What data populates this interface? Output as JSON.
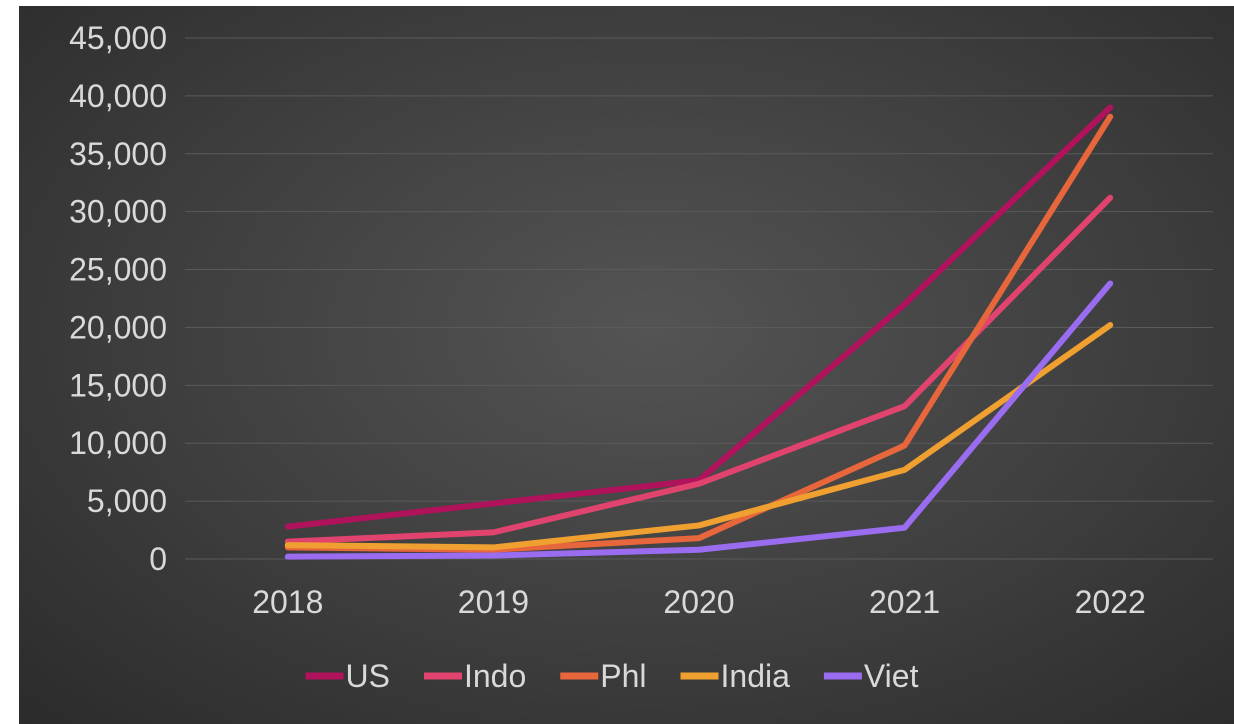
{
  "chart_data": {
    "type": "line",
    "categories": [
      "2018",
      "2019",
      "2020",
      "2021",
      "2022"
    ],
    "y_ticks": [
      "0",
      "5,000",
      "10,000",
      "15,000",
      "20,000",
      "25,000",
      "30,000",
      "35,000",
      "40,000",
      "45,000"
    ],
    "ylim": [
      0,
      45000
    ],
    "grid": true,
    "legend_position": "bottom",
    "series": [
      {
        "name": "US",
        "color": "#b0125b",
        "values": [
          2800,
          4800,
          6800,
          22000,
          39000
        ]
      },
      {
        "name": "Indo",
        "color": "#e0446e",
        "values": [
          1500,
          2300,
          6500,
          13200,
          31200
        ]
      },
      {
        "name": "Phl",
        "color": "#e8663c",
        "values": [
          1000,
          800,
          1800,
          9800,
          38200
        ]
      },
      {
        "name": "India",
        "color": "#f0a030",
        "values": [
          1200,
          1000,
          2900,
          7700,
          20200
        ]
      },
      {
        "name": "Viet",
        "color": "#9a6cf0",
        "values": [
          200,
          300,
          800,
          2700,
          23800
        ]
      }
    ]
  }
}
